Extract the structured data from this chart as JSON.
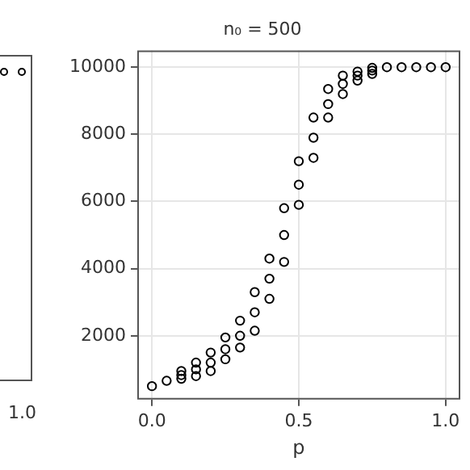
{
  "chart_data": [
    {
      "type": "other",
      "annotations": [
        "1.0"
      ]
    },
    {
      "type": "scatter",
      "title": "n₀ = 500",
      "xlabel": "p",
      "color": "#000000",
      "marker": "circle",
      "x": [
        0,
        0.05,
        0.1,
        0.1,
        0.1,
        0.15,
        0.15,
        0.15,
        0.2,
        0.2,
        0.2,
        0.25,
        0.25,
        0.25,
        0.3,
        0.3,
        0.3,
        0.35,
        0.35,
        0.35,
        0.4,
        0.4,
        0.4,
        0.45,
        0.45,
        0.45,
        0.5,
        0.5,
        0.5,
        0.55,
        0.55,
        0.55,
        0.6,
        0.6,
        0.6,
        0.65,
        0.65,
        0.65,
        0.7,
        0.7,
        0.7,
        0.75,
        0.75,
        0.75,
        0.8,
        0.85,
        0.9,
        0.95,
        1.0
      ],
      "values": [
        500,
        660,
        720,
        830,
        950,
        800,
        1000,
        1200,
        950,
        1200,
        1500,
        1300,
        1600,
        1950,
        1650,
        2000,
        2450,
        2150,
        2700,
        3300,
        3100,
        3700,
        4300,
        4200,
        5000,
        5800,
        5900,
        6500,
        7200,
        7300,
        7900,
        8500,
        8500,
        8900,
        9350,
        9200,
        9500,
        9750,
        9600,
        9750,
        9870,
        9800,
        9900,
        9980,
        10000,
        10000,
        10000,
        10000,
        10000
      ],
      "xlim": [
        -0.05,
        1.05
      ],
      "ylim": [
        100,
        10500
      ],
      "xticks": [
        {
          "value": 0,
          "label": "0.0"
        },
        {
          "value": 0.5,
          "label": "0.5"
        },
        {
          "value": 1.0,
          "label": "1.0"
        }
      ],
      "yticks": [
        2000,
        4000,
        6000,
        8000,
        10000
      ],
      "grid": true
    }
  ]
}
